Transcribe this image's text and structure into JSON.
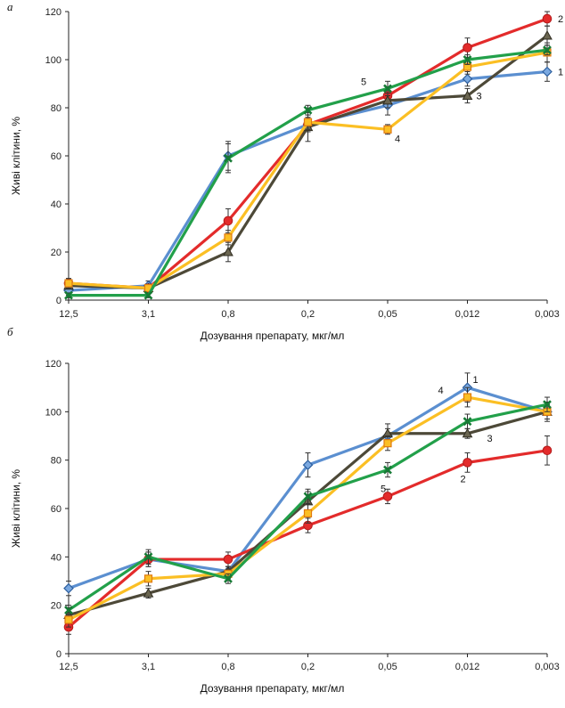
{
  "chart_data": [
    {
      "type": "line",
      "panel_letter": "а",
      "categories": [
        "12,5",
        "3,1",
        "0,8",
        "0,2",
        "0,05",
        "0,012",
        "0,003"
      ],
      "xlabel": "Дозування препарату, мкг/мл",
      "ylabel": "Живі клітини, %",
      "ylim": [
        0,
        120
      ],
      "yticks": [
        "0",
        "20",
        "40",
        "60",
        "80",
        "100",
        "120"
      ],
      "grid": false,
      "series": [
        {
          "name": "1",
          "color": "#5b8fd0",
          "marker": "diamond",
          "values": [
            4,
            6,
            60,
            73,
            81,
            92,
            95
          ],
          "errors": [
            2,
            2,
            6,
            3,
            4,
            3,
            4
          ]
        },
        {
          "name": "2",
          "color": "#e32b2b",
          "marker": "circle",
          "values": [
            7,
            5,
            33,
            73,
            85,
            105,
            117
          ],
          "errors": [
            2,
            1,
            5,
            3,
            3,
            4,
            3
          ]
        },
        {
          "name": "3",
          "color": "#4d4938",
          "marker": "triangle",
          "values": [
            6,
            5,
            20,
            72,
            83,
            85,
            110
          ],
          "errors": [
            1,
            1,
            4,
            6,
            3,
            3,
            4
          ]
        },
        {
          "name": "4",
          "color": "#fbbf24",
          "marker": "square",
          "values": [
            7,
            5,
            26,
            74,
            71,
            97,
            103
          ],
          "errors": [
            2,
            1,
            3,
            3,
            2,
            3,
            4
          ]
        },
        {
          "name": "5",
          "color": "#22a04a",
          "marker": "x",
          "values": [
            2,
            2,
            59,
            79,
            88,
            100,
            104
          ],
          "errors": [
            1,
            1,
            6,
            2,
            3,
            2,
            2
          ]
        }
      ],
      "labels": [
        {
          "text": "1",
          "series": 0,
          "point": 6
        },
        {
          "text": "2",
          "series": 1,
          "point": 6
        },
        {
          "text": "3",
          "series": 2,
          "point": 5
        },
        {
          "text": "4",
          "series": 3,
          "point": 4
        },
        {
          "text": "5",
          "series": 4,
          "point": 4
        }
      ]
    },
    {
      "type": "line",
      "panel_letter": "б",
      "categories": [
        "12,5",
        "3,1",
        "0,8",
        "0,2",
        "0,05",
        "0,012",
        "0,003"
      ],
      "xlabel": "Дозування препарату, мкг/мл",
      "ylabel": "Живі клітини, %",
      "ylim": [
        0,
        120
      ],
      "yticks": [
        "0",
        "20",
        "40",
        "60",
        "80",
        "100",
        "120"
      ],
      "grid": false,
      "series": [
        {
          "name": "1",
          "color": "#5b8fd0",
          "marker": "diamond",
          "values": [
            27,
            39,
            34,
            78,
            90,
            110,
            100
          ],
          "errors": [
            3,
            3,
            2,
            5,
            3,
            6,
            3
          ]
        },
        {
          "name": "2",
          "color": "#e32b2b",
          "marker": "circle",
          "values": [
            11,
            39,
            39,
            53,
            65,
            79,
            84
          ],
          "errors": [
            3,
            3,
            3,
            3,
            3,
            4,
            6
          ]
        },
        {
          "name": "3",
          "color": "#4d4938",
          "marker": "triangle",
          "values": [
            16,
            25,
            34,
            63,
            91,
            91,
            100
          ],
          "errors": [
            3,
            2,
            2,
            4,
            4,
            2,
            4
          ]
        },
        {
          "name": "4",
          "color": "#fbbf24",
          "marker": "square",
          "values": [
            14,
            31,
            33,
            58,
            87,
            106,
            100
          ],
          "errors": [
            3,
            3,
            2,
            4,
            3,
            4,
            3
          ]
        },
        {
          "name": "5",
          "color": "#22a04a",
          "marker": "x",
          "values": [
            18,
            40,
            31,
            65,
            76,
            96,
            103
          ],
          "errors": [
            2,
            3,
            2,
            3,
            3,
            3,
            3
          ]
        }
      ],
      "labels": [
        {
          "text": "1",
          "series": 0,
          "point": 5
        },
        {
          "text": "2",
          "series": 1,
          "point": 5
        },
        {
          "text": "3",
          "series": 2,
          "point": 5
        },
        {
          "text": "4",
          "series": 3,
          "point": 5
        },
        {
          "text": "5",
          "series": 4,
          "point": 4
        }
      ]
    }
  ]
}
